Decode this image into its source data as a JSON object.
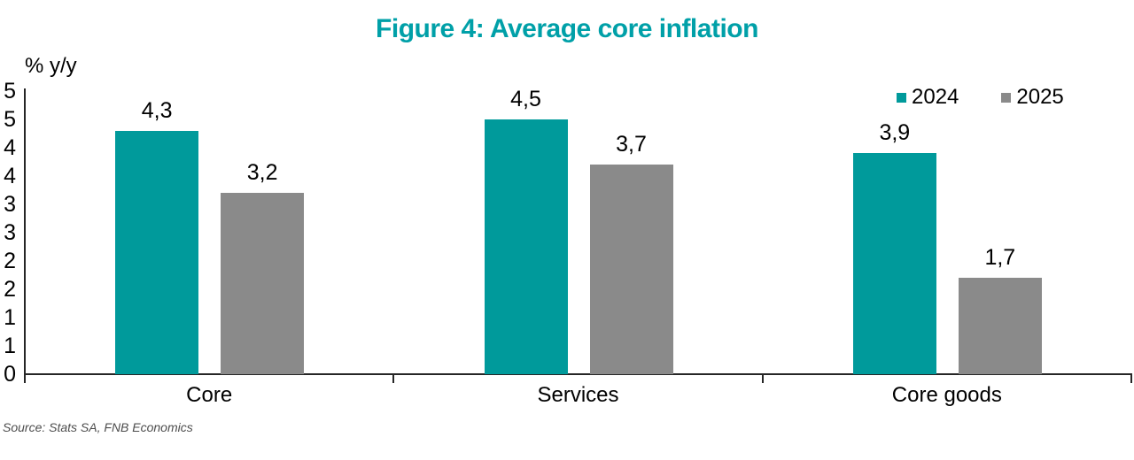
{
  "figure": {
    "title": "Figure 4: Average core inflation",
    "title_color": "#00A0A8",
    "source_note": "Source: Stats SA, FNB Economics"
  },
  "chart_data": {
    "type": "bar",
    "title": "Figure 4: Average core inflation",
    "ylabel": "% y/y",
    "xlabel": "",
    "categories": [
      "Core",
      "Services",
      "Core goods"
    ],
    "series": [
      {
        "name": "2024",
        "color": "#009A9B",
        "values": [
          4.3,
          4.5,
          3.9
        ],
        "labels": [
          "4,3",
          "4,5",
          "3,9"
        ]
      },
      {
        "name": "2025",
        "color": "#8A8A8A",
        "values": [
          3.2,
          3.7,
          1.7
        ],
        "labels": [
          "3,2",
          "3,7",
          "1,7"
        ]
      }
    ],
    "ylim": [
      0,
      5
    ],
    "ytick_step": 0.5,
    "ytick_labels": [
      "5",
      "5",
      "4",
      "4",
      "3",
      "3",
      "2",
      "2",
      "1",
      "1",
      "0"
    ],
    "grid": false,
    "legend_position": "top-right",
    "decimal_separator": ","
  }
}
